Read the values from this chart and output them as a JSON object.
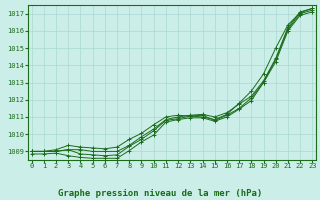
{
  "title": "Graphe pression niveau de la mer (hPa)",
  "background_color": "#cceee8",
  "grid_color": "#aad8d2",
  "line_color": "#1a6b1a",
  "x_labels": [
    "0",
    "1",
    "2",
    "3",
    "4",
    "5",
    "6",
    "7",
    "8",
    "9",
    "10",
    "11",
    "12",
    "13",
    "14",
    "15",
    "16",
    "17",
    "18",
    "19",
    "20",
    "21",
    "22",
    "23"
  ],
  "ylim": [
    1008.5,
    1017.5
  ],
  "yticks": [
    1009,
    1010,
    1011,
    1012,
    1013,
    1014,
    1015,
    1016,
    1017
  ],
  "series": [
    [
      1009.0,
      1009.0,
      1009.0,
      1009.1,
      1008.85,
      1008.8,
      1008.75,
      1008.8,
      1009.3,
      1009.7,
      1010.2,
      1010.8,
      1010.9,
      1011.05,
      1011.1,
      1010.8,
      1011.1,
      1011.5,
      1012.1,
      1013.0,
      1014.35,
      1016.1,
      1017.0,
      1017.2
    ],
    [
      1009.0,
      1009.0,
      1009.0,
      1009.1,
      1009.1,
      1009.0,
      1009.0,
      1009.0,
      1009.35,
      1009.85,
      1010.3,
      1010.85,
      1011.0,
      1011.1,
      1011.15,
      1011.0,
      1011.25,
      1011.75,
      1012.2,
      1013.1,
      1014.4,
      1016.2,
      1017.1,
      1017.3
    ],
    [
      1009.0,
      1009.0,
      1009.1,
      1009.35,
      1009.25,
      1009.2,
      1009.15,
      1009.25,
      1009.7,
      1010.05,
      1010.55,
      1011.0,
      1011.1,
      1011.05,
      1011.0,
      1010.85,
      1011.15,
      1011.8,
      1012.5,
      1013.5,
      1015.0,
      1016.35,
      1017.05,
      1017.3
    ],
    [
      1008.85,
      1008.85,
      1008.9,
      1008.75,
      1008.65,
      1008.6,
      1008.6,
      1008.6,
      1009.05,
      1009.55,
      1009.95,
      1010.7,
      1010.85,
      1010.95,
      1010.95,
      1010.75,
      1011.0,
      1011.45,
      1011.95,
      1013.0,
      1014.2,
      1016.0,
      1016.9,
      1017.1
    ]
  ]
}
